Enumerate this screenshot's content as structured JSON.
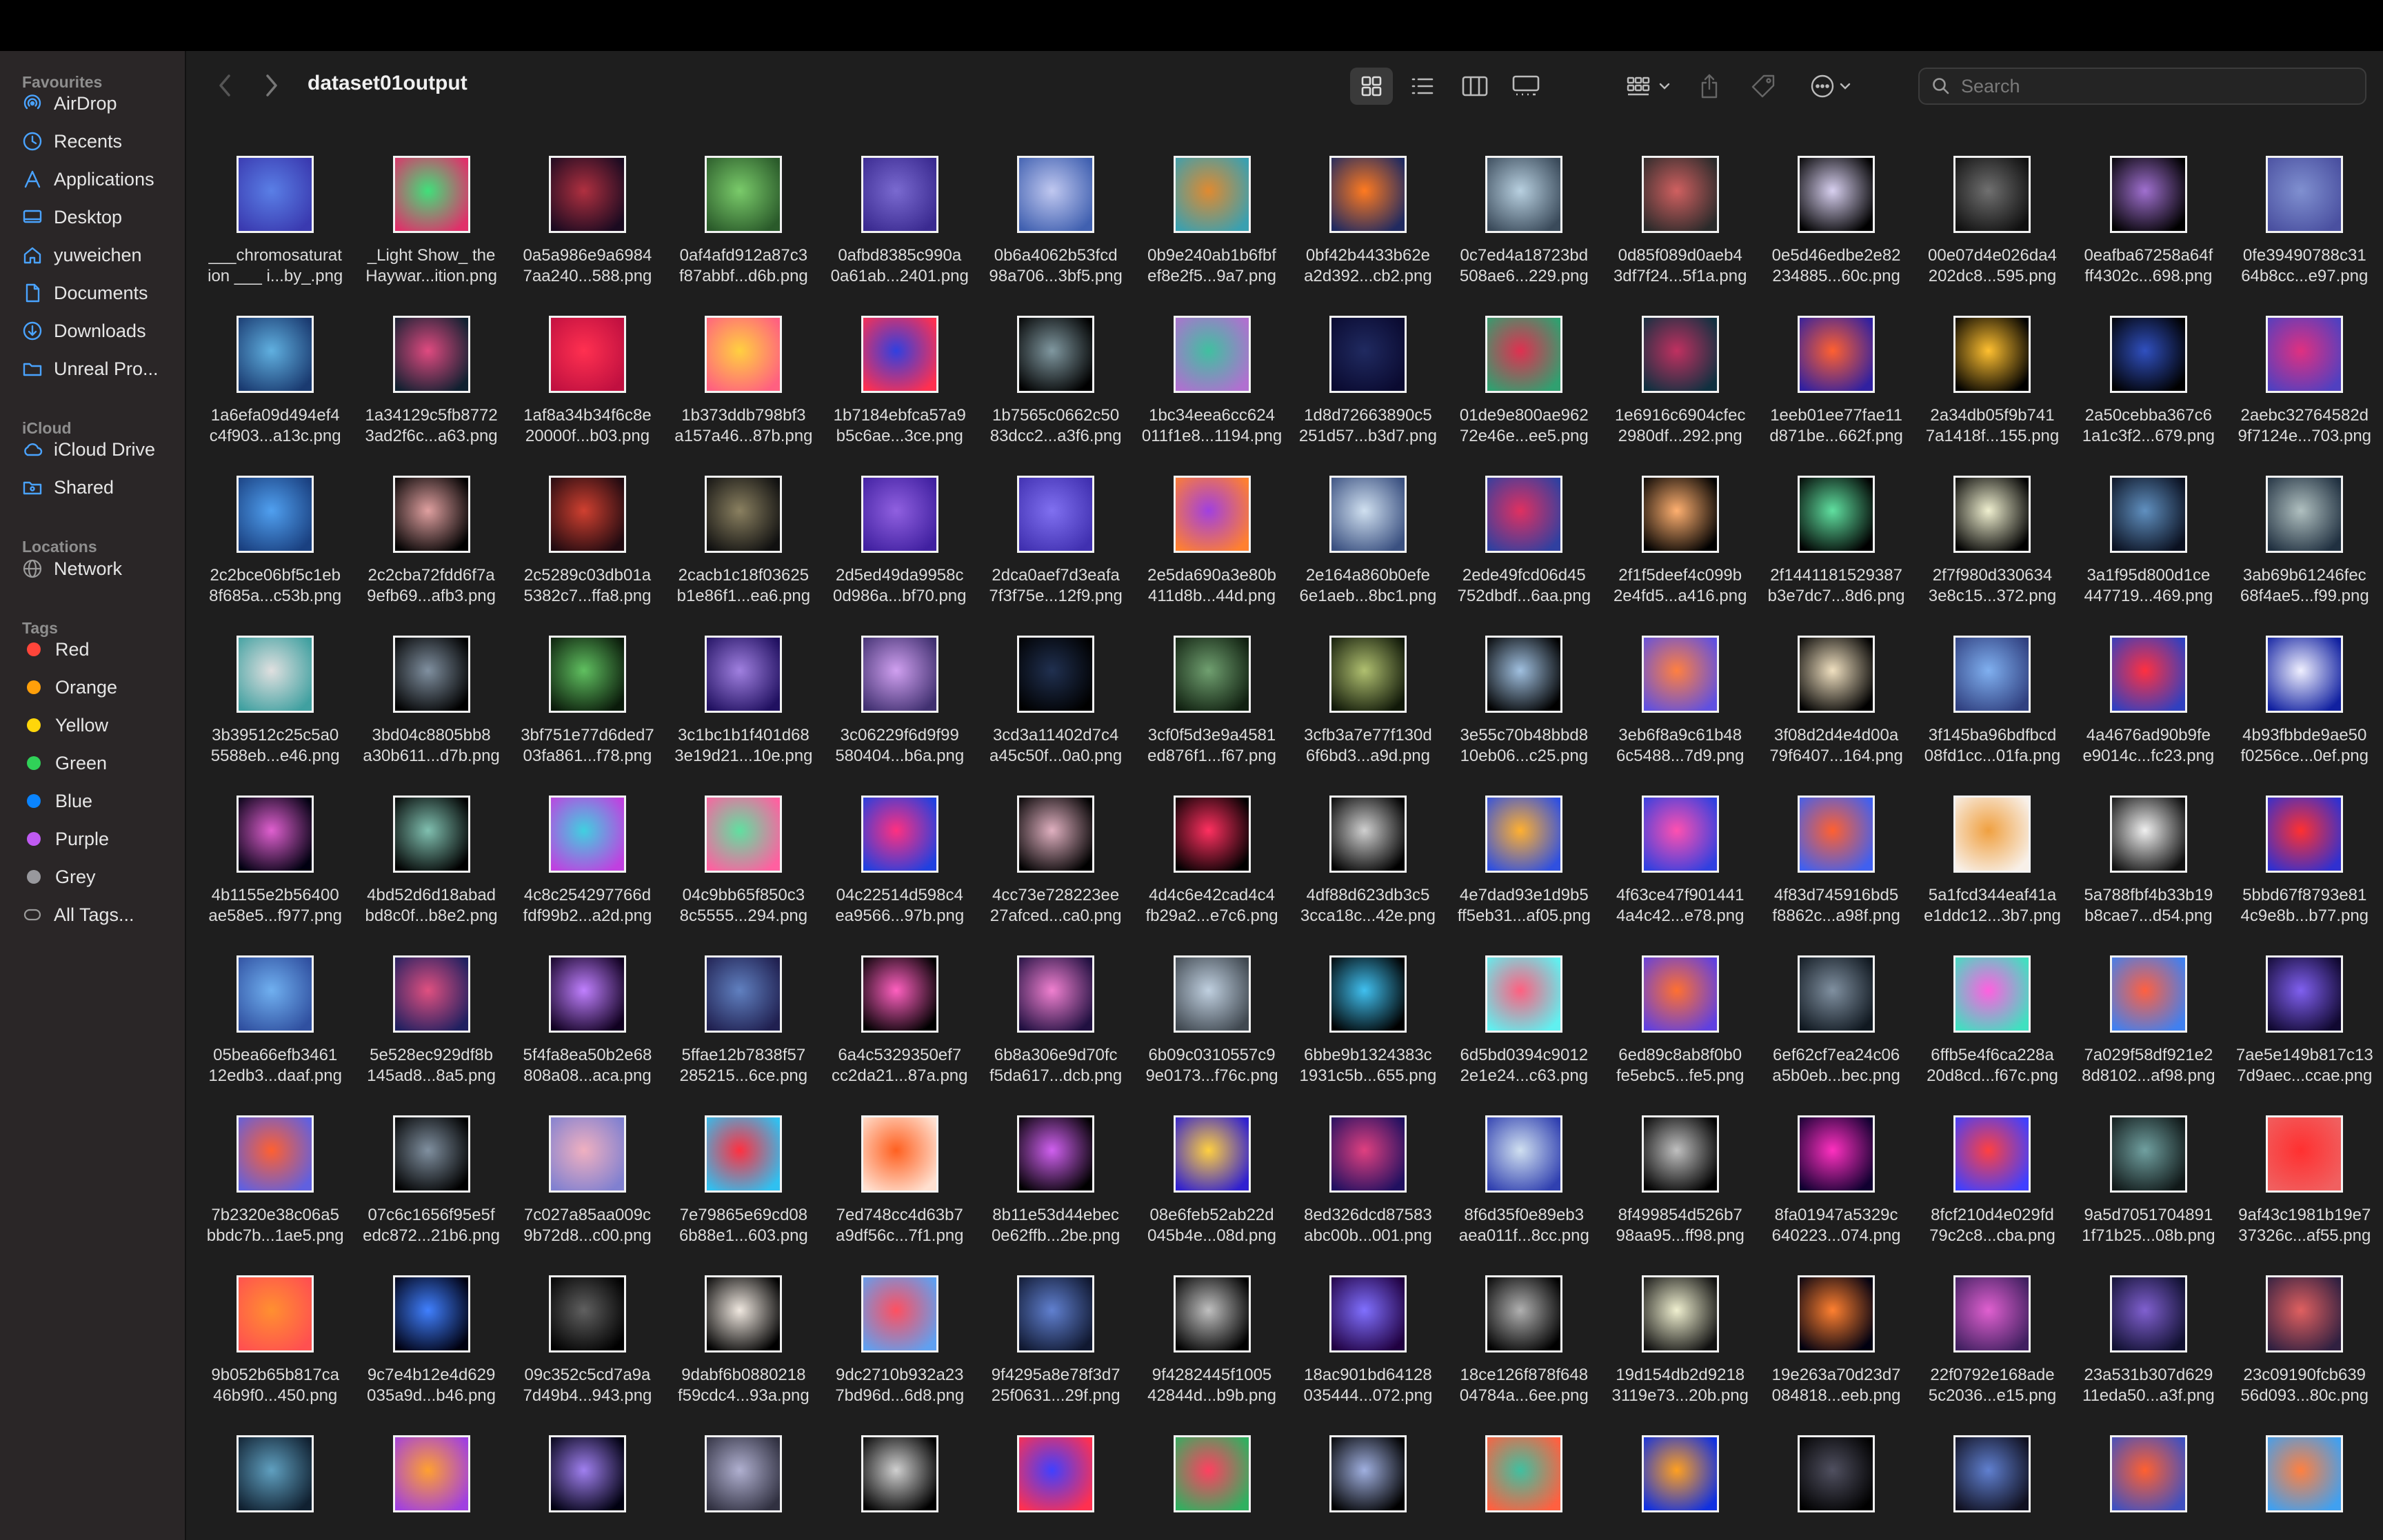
{
  "window": {
    "folder_title": "dataset01output"
  },
  "sidebar": {
    "sections": [
      {
        "label": "Favourites",
        "items": [
          {
            "label": "AirDrop",
            "icon": "airdrop-icon"
          },
          {
            "label": "Recents",
            "icon": "clock-icon"
          },
          {
            "label": "Applications",
            "icon": "applications-icon"
          },
          {
            "label": "Desktop",
            "icon": "desktop-icon"
          },
          {
            "label": "yuweichen",
            "icon": "home-icon"
          },
          {
            "label": "Documents",
            "icon": "document-icon"
          },
          {
            "label": "Downloads",
            "icon": "download-icon"
          },
          {
            "label": "Unreal Pro...",
            "icon": "folder-icon"
          }
        ]
      },
      {
        "label": "iCloud",
        "items": [
          {
            "label": "iCloud Drive",
            "icon": "cloud-icon"
          },
          {
            "label": "Shared",
            "icon": "shared-folder-icon"
          }
        ]
      },
      {
        "label": "Locations",
        "items": [
          {
            "label": "Network",
            "icon": "network-icon"
          }
        ]
      },
      {
        "label": "Tags",
        "items": [
          {
            "label": "Red",
            "color": "#ff453a"
          },
          {
            "label": "Orange",
            "color": "#ff9f0a"
          },
          {
            "label": "Yellow",
            "color": "#ffd60a"
          },
          {
            "label": "Green",
            "color": "#30d158"
          },
          {
            "label": "Blue",
            "color": "#0a84ff"
          },
          {
            "label": "Purple",
            "color": "#bf5af2"
          },
          {
            "label": "Grey",
            "color": "#98989d"
          },
          {
            "label": "All Tags...",
            "icon": "all-tags-icon"
          }
        ]
      }
    ]
  },
  "toolbar": {
    "view_modes": [
      "icon-view-icon",
      "list-view-icon",
      "column-view-icon",
      "gallery-view-icon"
    ],
    "active_view": "icon-view-icon",
    "group_icon": "group-by-icon",
    "share_icon": "share-icon",
    "tag_icon": "tag-icon",
    "more_icon": "more-actions-icon",
    "search_placeholder": "Search"
  },
  "files": [
    {
      "l1": "___chromosaturat",
      "l2": "ion ___ i...by_.png",
      "c1": "#5a7fe6",
      "c2": "#3a3ab0"
    },
    {
      "l1": "_Light Show_ the",
      "l2": "Haywar...ition.png",
      "c1": "#40e07a",
      "c2": "#e0306a"
    },
    {
      "l1": "0a5a986e9a6984",
      "l2": "7aa240...588.png",
      "c1": "#b03040",
      "c2": "#1a0a20"
    },
    {
      "l1": "0af4afd912a87c3",
      "l2": "f87abbf...d6b.png",
      "c1": "#7acb6a",
      "c2": "#2a5a2a"
    },
    {
      "l1": "0afbd8385c990a",
      "l2": "0a61ab...2401.png",
      "c1": "#7a6ad0",
      "c2": "#3a2a90"
    },
    {
      "l1": "0b6a4062b53fcd",
      "l2": "98a706...3bf5.png",
      "c1": "#c0c8f0",
      "c2": "#4060b0"
    },
    {
      "l1": "0b9e240ab1b6fbf",
      "l2": "ef8e2f5...9a7.png",
      "c1": "#e08a30",
      "c2": "#3aa0b0"
    },
    {
      "l1": "0bf42b4433b62e",
      "l2": "a2d392...cb2.png",
      "c1": "#ff7a20",
      "c2": "#202a60"
    },
    {
      "l1": "0c7ed4a18723bd",
      "l2": "508ae6...229.png",
      "c1": "#b8d0e0",
      "c2": "#3a4a5a"
    },
    {
      "l1": "0d85f089d0aeb4",
      "l2": "3df7f24...5f1a.png",
      "c1": "#d06060",
      "c2": "#2a2a2a"
    },
    {
      "l1": "0e5d46edbe2e82",
      "l2": "234885...60c.png",
      "c1": "#d8d0f0",
      "c2": "#000000"
    },
    {
      "l1": "00e07d4e026da4",
      "l2": "202dc8...595.png",
      "c1": "#707070",
      "c2": "#101010"
    },
    {
      "l1": "0eafba67258a64f",
      "l2": "ff4302c...698.png",
      "c1": "#a070d0",
      "c2": "#000000"
    },
    {
      "l1": "0fe39490788c31",
      "l2": "64b8cc...e97.png",
      "c1": "#8090d0",
      "c2": "#4a50a0"
    },
    {
      "l1": "1a6efa09d494ef4",
      "l2": "c4f903...a13c.png",
      "c1": "#60b0e0",
      "c2": "#1a3a70"
    },
    {
      "l1": "1a34129c5fb8772",
      "l2": "3ad2f6c...a63.png",
      "c1": "#e04a80",
      "c2": "#102030"
    },
    {
      "l1": "1af8a34b34f6c8e",
      "l2": "20000f...b03.png",
      "c1": "#ff3050",
      "c2": "#c01040"
    },
    {
      "l1": "1b373ddb798bf3",
      "l2": "a157a46...87b.png",
      "c1": "#ffd040",
      "c2": "#ff6080"
    },
    {
      "l1": "1b7184ebfca57a9",
      "l2": "b5c6ae...3ce.png",
      "c1": "#3040e0",
      "c2": "#ff3050"
    },
    {
      "l1": "1b7565c0662c50",
      "l2": "83dcc2...a3f6.png",
      "c1": "#8098a0",
      "c2": "#000000"
    },
    {
      "l1": "1bc34eea6cc624",
      "l2": "011f1e8...1194.png",
      "c1": "#40c0a0",
      "c2": "#b070d0"
    },
    {
      "l1": "1d8d72663890c5",
      "l2": "251d57...b3d7.png",
      "c1": "#202a60",
      "c2": "#0a0a30"
    },
    {
      "l1": "01de9e800ae962",
      "l2": "72e46e...ee5.png",
      "c1": "#e03050",
      "c2": "#30a070"
    },
    {
      "l1": "1e6916c6904cfec",
      "l2": "2980df...292.png",
      "c1": "#c03060",
      "c2": "#103040"
    },
    {
      "l1": "1eeb01ee77fae11",
      "l2": "d871be...662f.png",
      "c1": "#ff6030",
      "c2": "#3020a0"
    },
    {
      "l1": "2a34db05f9b741",
      "l2": "7a1418f...155.png",
      "c1": "#ffc030",
      "c2": "#000000"
    },
    {
      "l1": "2a50cebba367c6",
      "l2": "1a1c3f2...679.png",
      "c1": "#3050c0",
      "c2": "#000000"
    },
    {
      "l1": "2aebc32764582d",
      "l2": "9f7124e...703.png",
      "c1": "#e03080",
      "c2": "#5040c0"
    },
    {
      "l1": "2c2bce06bf5c1eb",
      "l2": "8f685a...c53b.png",
      "c1": "#50a0f0",
      "c2": "#1a4080"
    },
    {
      "l1": "2c2cba72fdd6f7a",
      "l2": "9efb69...afb3.png",
      "c1": "#e0a0a0",
      "c2": "#000000"
    },
    {
      "l1": "2c5289c03db01a",
      "l2": "5382c7...ffa8.png",
      "c1": "#d04030",
      "c2": "#200a10"
    },
    {
      "l1": "2cacb1c18f03625",
      "l2": "b1e86f1...ea6.png",
      "c1": "#8a8060",
      "c2": "#101010"
    },
    {
      "l1": "2d5ed49da9958c",
      "l2": "0d986a...bf70.png",
      "c1": "#9060e0",
      "c2": "#4020a0"
    },
    {
      "l1": "2dca0aef7d3eafa",
      "l2": "7f3f75e...12f9.png",
      "c1": "#8070f0",
      "c2": "#4030b0"
    },
    {
      "l1": "2e5da690a3e80b",
      "l2": "411d8b...44d.png",
      "c1": "#a040e0",
      "c2": "#ff8030"
    },
    {
      "l1": "2e164a860b0efe",
      "l2": "6e1aeb...8bc1.png",
      "c1": "#d0e0f0",
      "c2": "#3a5080"
    },
    {
      "l1": "2ede49fcd06d45",
      "l2": "752dbdf...6aa.png",
      "c1": "#e03060",
      "c2": "#3040a0"
    },
    {
      "l1": "2f1f5deef4c099b",
      "l2": "2e4fd5...a416.png",
      "c1": "#ffb070",
      "c2": "#000000"
    },
    {
      "l1": "2f1441181529387",
      "l2": "b3e7dc7...8d6.png",
      "c1": "#60e0a0",
      "c2": "#000000"
    },
    {
      "l1": "2f7f980d330634",
      "l2": "3e8c15...372.png",
      "c1": "#f0f0d0",
      "c2": "#000000"
    },
    {
      "l1": "3a1f95d800d1ce",
      "l2": "447719...469.png",
      "c1": "#6090c0",
      "c2": "#0a1020"
    },
    {
      "l1": "3ab69b61246fec",
      "l2": "68f4ae5...f99.png",
      "c1": "#b0c0c0",
      "c2": "#203040"
    },
    {
      "l1": "3b39512c25c5a0",
      "l2": "5588eb...e46.png",
      "c1": "#e0e0e0",
      "c2": "#40a0a0"
    },
    {
      "l1": "3bd04c8805bb8",
      "l2": "a30b611...d7b.png",
      "c1": "#8090a0",
      "c2": "#000000"
    },
    {
      "l1": "3bf751e77d6ded7",
      "l2": "03fa861...f78.png",
      "c1": "#60c060",
      "c2": "#0a1a0a"
    },
    {
      "l1": "3c1bc1b1f401d68",
      "l2": "3e19d21...10e.png",
      "c1": "#a080e0",
      "c2": "#201060"
    },
    {
      "l1": "3c06229f6d9f99",
      "l2": "580404...b6a.png",
      "c1": "#d0a0f0",
      "c2": "#403070"
    },
    {
      "l1": "3cd3a11402d7c4",
      "l2": "a45c50f...0a0.png",
      "c1": "#203050",
      "c2": "#000000"
    },
    {
      "l1": "3cf0f5d3e9a4581",
      "l2": "ed876f1...f67.png",
      "c1": "#70a070",
      "c2": "#102010"
    },
    {
      "l1": "3cfb3a7e77f130d",
      "l2": "6f6bd3...a9d.png",
      "c1": "#b0c070",
      "c2": "#101808"
    },
    {
      "l1": "3e55c70b48bbd8",
      "l2": "10eb06...c25.png",
      "c1": "#a0c0e0",
      "c2": "#000000"
    },
    {
      "l1": "3eb6f8a9c61b48",
      "l2": "6c5488...7d9.png",
      "c1": "#ff8040",
      "c2": "#6050e0"
    },
    {
      "l1": "3f08d2d4e4d00a",
      "l2": "79f6407...164.png",
      "c1": "#f0e0c0",
      "c2": "#000000"
    },
    {
      "l1": "3f145ba96bdfbcd",
      "l2": "08fd1cc...01fa.png",
      "c1": "#80b0f0",
      "c2": "#304080"
    },
    {
      "l1": "4a4676ad90b9fe",
      "l2": "e9014c...fc23.png",
      "c1": "#ff3040",
      "c2": "#3040c0"
    },
    {
      "l1": "4b93fbbde9ae50",
      "l2": "f0256ce...0ef.png",
      "c1": "#f0f0ff",
      "c2": "#1020a0"
    },
    {
      "l1": "4b1155e2b56400",
      "l2": "ae58e5...f977.png",
      "c1": "#e060d0",
      "c2": "#000010"
    },
    {
      "l1": "4bd52d6d18abad",
      "l2": "bd8c0f...b8e2.png",
      "c1": "#80c0b0",
      "c2": "#000000"
    },
    {
      "l1": "4c8c254297766d",
      "l2": "fdf99b2...a2d.png",
      "c1": "#40d0e0",
      "c2": "#c040e0"
    },
    {
      "l1": "04c9bb65f850c3",
      "l2": "8c5555...294.png",
      "c1": "#60e0a0",
      "c2": "#ff60a0"
    },
    {
      "l1": "04c22514d598c4",
      "l2": "ea9566...97b.png",
      "c1": "#ff3080",
      "c2": "#2040e0"
    },
    {
      "l1": "4cc73e728223ee",
      "l2": "27afced...ca0.png",
      "c1": "#e0b0c0",
      "c2": "#000000"
    },
    {
      "l1": "4d4c6e42cad4c4",
      "l2": "fb29a2...e7c6.png",
      "c1": "#ff3060",
      "c2": "#000000"
    },
    {
      "l1": "4df88d623db3c5",
      "l2": "3cca18c...42e.png",
      "c1": "#d0d0d0",
      "c2": "#000000"
    },
    {
      "l1": "4e7dad93e1d9b5",
      "l2": "ff5eb31...af05.png",
      "c1": "#ffb030",
      "c2": "#3050e0"
    },
    {
      "l1": "4f63ce47f901441",
      "l2": "4a4c42...e78.png",
      "c1": "#ff50b0",
      "c2": "#3040e0"
    },
    {
      "l1": "4f83d745916bd5",
      "l2": "f8862c...a98f.png",
      "c1": "#ff6030",
      "c2": "#4060f0"
    },
    {
      "l1": "5a1fcd344eaf41a",
      "l2": "e1ddc12...3b7.png",
      "c1": "#f0a040",
      "c2": "#f8f0e8"
    },
    {
      "l1": "5a788fbf4b33b19",
      "l2": "b8cae7...d54.png",
      "c1": "#f0f0f0",
      "c2": "#101010"
    },
    {
      "l1": "5bbd67f8793e81",
      "l2": "4c9e8b...b77.png",
      "c1": "#ff3030",
      "c2": "#3030d0"
    },
    {
      "l1": "05bea66efb3461",
      "l2": "12edb3...daaf.png",
      "c1": "#70b0f0",
      "c2": "#3050a0"
    },
    {
      "l1": "5e528ec929df8b",
      "l2": "145ad8...8a5.png",
      "c1": "#e05080",
      "c2": "#202060"
    },
    {
      "l1": "5f4fa8ea50b2e68",
      "l2": "808a08...aca.png",
      "c1": "#c080ff",
      "c2": "#100020"
    },
    {
      "l1": "5ffae12b7838f57",
      "l2": "285215...6ce.png",
      "c1": "#6080c0",
      "c2": "#202050"
    },
    {
      "l1": "6a4c5329350ef7",
      "l2": "cc2da21...87a.png",
      "c1": "#ff60c0",
      "c2": "#000000"
    },
    {
      "l1": "6b8a306e9d70fc",
      "l2": "f5da617...dcb.png",
      "c1": "#f080d0",
      "c2": "#201040"
    },
    {
      "l1": "6b09c0310557c9",
      "l2": "9e0173...f76c.png",
      "c1": "#c0d0e0",
      "c2": "#404850"
    },
    {
      "l1": "6bbe9b1324383c",
      "l2": "1931c5b...655.png",
      "c1": "#40c0f0",
      "c2": "#000000"
    },
    {
      "l1": "6d5bd0394c9012",
      "l2": "2e1e24...c63.png",
      "c1": "#ff6080",
      "c2": "#60f0f0"
    },
    {
      "l1": "6ed89c8ab8f0b0",
      "l2": "fe5ebc5...fe5.png",
      "c1": "#ff7030",
      "c2": "#6040e0"
    },
    {
      "l1": "6ef62cf7ea24c06",
      "l2": "a5b0eb...bec.png",
      "c1": "#8090a0",
      "c2": "#101820"
    },
    {
      "l1": "6ffb5e4f6ca228a",
      "l2": "20d8cd...f67c.png",
      "c1": "#ff60e0",
      "c2": "#40e0c0"
    },
    {
      "l1": "7a029f58df921e2",
      "l2": "8d8102...af98.png",
      "c1": "#ff6040",
      "c2": "#4080f0"
    },
    {
      "l1": "7ae5e149b817c13",
      "l2": "7d9aec...ccae.png",
      "c1": "#8060f0",
      "c2": "#100830"
    },
    {
      "l1": "7b2320e38c06a5",
      "l2": "bbdc7b...1ae5.png",
      "c1": "#ff6030",
      "c2": "#6060e0"
    },
    {
      "l1": "07c6c1656f95e5f",
      "l2": "edc872...21b6.png",
      "c1": "#8090a0",
      "c2": "#000000"
    },
    {
      "l1": "7c027a85aa009c",
      "l2": "9b72d8...c00.png",
      "c1": "#f0b0c0",
      "c2": "#8080d0"
    },
    {
      "l1": "7e79865e69cd08",
      "l2": "6b88e1...603.png",
      "c1": "#ff3040",
      "c2": "#30c0f0"
    },
    {
      "l1": "7ed748cc4d63b7",
      "l2": "a9df56c...7f1.png",
      "c1": "#ff6020",
      "c2": "#ffe0d0"
    },
    {
      "l1": "8b11e53d44ebec",
      "l2": "0e62ffb...2be.png",
      "c1": "#d060f0",
      "c2": "#000000"
    },
    {
      "l1": "08e6feb52ab22d",
      "l2": "045b4e...08d.png",
      "c1": "#ffd040",
      "c2": "#3020d0"
    },
    {
      "l1": "8ed326dcd87583",
      "l2": "abc00b...001.png",
      "c1": "#e04080",
      "c2": "#201060"
    },
    {
      "l1": "8f6d35f0e89eb3",
      "l2": "aea011f...8cc.png",
      "c1": "#d0e0f0",
      "c2": "#3040b0"
    },
    {
      "l1": "8f499854d526b7",
      "l2": "98aa95...ff98.png",
      "c1": "#c0c0c0",
      "c2": "#000000"
    },
    {
      "l1": "8fa01947a5329c",
      "l2": "640223...074.png",
      "c1": "#ff30c0",
      "c2": "#100030"
    },
    {
      "l1": "8fcf210d4e029fd",
      "l2": "79c2c8...cba.png",
      "c1": "#ff4040",
      "c2": "#4040ff"
    },
    {
      "l1": "9a5d7051704891",
      "l2": "1f71b25...08b.png",
      "c1": "#70a0a0",
      "c2": "#101818"
    },
    {
      "l1": "9af43c1981b19e7",
      "l2": "37326c...af55.png",
      "c1": "#ff3030",
      "c2": "#f06060"
    },
    {
      "l1": "9b052b65b817ca",
      "l2": "46b9f0...450.png",
      "c1": "#ff9030",
      "c2": "#ff5050"
    },
    {
      "l1": "9c7e4b12e4d629",
      "l2": "035a9d...b46.png",
      "c1": "#4080ff",
      "c2": "#000010"
    },
    {
      "l1": "09c352c5cd7a9a",
      "l2": "7d49b4...943.png",
      "c1": "#606060",
      "c2": "#000000"
    },
    {
      "l1": "9dabf6b0880218",
      "l2": "f59cdc4...93a.png",
      "c1": "#f0e8e0",
      "c2": "#000000"
    },
    {
      "l1": "9dc2710b932a23",
      "l2": "7bd96d...6d8.png",
      "c1": "#ff5060",
      "c2": "#60a0f0"
    },
    {
      "l1": "9f4295a8e78f3d7",
      "l2": "25f0631...29f.png",
      "c1": "#6080d0",
      "c2": "#101830"
    },
    {
      "l1": "9f4282445f1005",
      "l2": "42844d...b9b.png",
      "c1": "#c0c0c0",
      "c2": "#000000"
    },
    {
      "l1": "18ac901bd64128",
      "l2": "035444...072.png",
      "c1": "#8070ff",
      "c2": "#200040"
    },
    {
      "l1": "18ce126f878f648",
      "l2": "04784a...6ee.png",
      "c1": "#b0b0b0",
      "c2": "#000000"
    },
    {
      "l1": "19d154db2d9218",
      "l2": "3119e73...20b.png",
      "c1": "#f0f0d0",
      "c2": "#101010"
    },
    {
      "l1": "19e263a70d23d7",
      "l2": "084818...eeb.png",
      "c1": "#ff8030",
      "c2": "#000010"
    },
    {
      "l1": "22f0792e168ade",
      "l2": "5c2036...e15.png",
      "c1": "#e060d0",
      "c2": "#402060"
    },
    {
      "l1": "23a531b307d629",
      "l2": "11eda50...a3f.png",
      "c1": "#8060d0",
      "c2": "#101030"
    },
    {
      "l1": "23c09190fcb639",
      "l2": "56d093...80c.png",
      "c1": "#e06060",
      "c2": "#302040"
    },
    {
      "l1": "",
      "l2": "",
      "c1": "#60a0c0",
      "c2": "#102030"
    },
    {
      "l1": "",
      "l2": "",
      "c1": "#ffa030",
      "c2": "#a040e0"
    },
    {
      "l1": "",
      "l2": "",
      "c1": "#a080f0",
      "c2": "#000010"
    },
    {
      "l1": "",
      "l2": "",
      "c1": "#b0b0d0",
      "c2": "#303040"
    },
    {
      "l1": "",
      "l2": "",
      "c1": "#d0d0d0",
      "c2": "#000000"
    },
    {
      "l1": "",
      "l2": "",
      "c1": "#4040ff",
      "c2": "#ff3050"
    },
    {
      "l1": "",
      "l2": "",
      "c1": "#ff4060",
      "c2": "#30b060"
    },
    {
      "l1": "",
      "l2": "",
      "c1": "#a0b0e0",
      "c2": "#000000"
    },
    {
      "l1": "",
      "l2": "",
      "c1": "#40c0a0",
      "c2": "#ff6040"
    },
    {
      "l1": "",
      "l2": "",
      "c1": "#ffa020",
      "c2": "#1030e0"
    },
    {
      "l1": "",
      "l2": "",
      "c1": "#505060",
      "c2": "#000000"
    },
    {
      "l1": "",
      "l2": "",
      "c1": "#6080d0",
      "c2": "#101020"
    },
    {
      "l1": "",
      "l2": "",
      "c1": "#ff6030",
      "c2": "#4050c0"
    },
    {
      "l1": "",
      "l2": "",
      "c1": "#ff8040",
      "c2": "#40a0f0"
    }
  ]
}
